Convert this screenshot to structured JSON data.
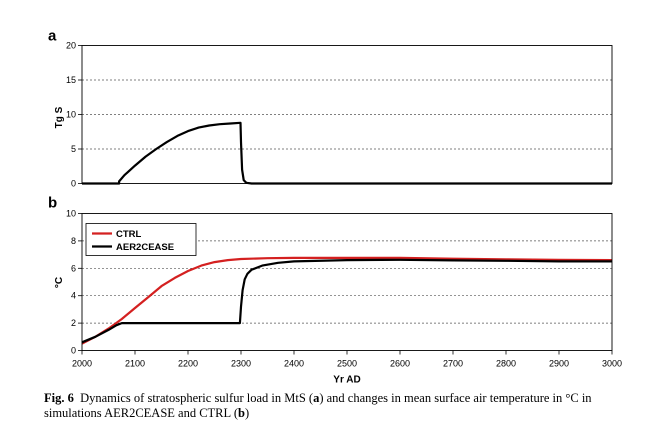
{
  "colors": {
    "ctrl": "#d42020",
    "aer2cease": "#000000",
    "grid": "#555555"
  },
  "caption": {
    "fig_label": "Fig. 6",
    "part1": "Dynamics of stratospheric sulfur load in MtS (",
    "ref_a": "a",
    "part2": ") and changes in mean surface air temperature in °C in simulations AER2CEASE and CTRL (",
    "ref_b": "b",
    "part3": ")"
  },
  "chart_data": [
    {
      "panel": "a",
      "type": "line",
      "title": "",
      "xlabel": "",
      "ylabel": "Tg S",
      "xlim": [
        2000,
        3000
      ],
      "ylim": [
        0,
        20
      ],
      "yticks": [
        "0",
        "5",
        "10",
        "15",
        "20"
      ],
      "grid": true,
      "series": [
        {
          "name": "AER2CEASE",
          "color": "#000000",
          "x": [
            2000,
            2070,
            2070,
            2080,
            2100,
            2120,
            2140,
            2160,
            2180,
            2200,
            2220,
            2240,
            2260,
            2280,
            2299,
            2300,
            2302,
            2305,
            2310,
            2320,
            3000
          ],
          "y": [
            0,
            0,
            0.3,
            1.2,
            2.6,
            3.9,
            5.0,
            6.0,
            6.9,
            7.6,
            8.1,
            8.4,
            8.6,
            8.7,
            8.8,
            6.0,
            2.0,
            0.5,
            0.1,
            0,
            0
          ]
        }
      ]
    },
    {
      "panel": "b",
      "type": "line",
      "title": "",
      "xlabel": "Yr AD",
      "ylabel": "°C",
      "xlim": [
        2000,
        3000
      ],
      "ylim": [
        0,
        10
      ],
      "xticks": [
        "2000",
        "2100",
        "2200",
        "2300",
        "2400",
        "2500",
        "2600",
        "2700",
        "2800",
        "2900",
        "3000"
      ],
      "yticks": [
        "0",
        "2",
        "4",
        "6",
        "8",
        "10"
      ],
      "grid": true,
      "legend": "top-left",
      "series": [
        {
          "name": "CTRL",
          "color": "#d42020",
          "x": [
            2000,
            2025,
            2050,
            2075,
            2100,
            2125,
            2150,
            2175,
            2200,
            2225,
            2250,
            2275,
            2300,
            2350,
            2400,
            2500,
            2600,
            2700,
            2800,
            2900,
            3000
          ],
          "y": [
            0.5,
            1.0,
            1.6,
            2.3,
            3.1,
            3.9,
            4.7,
            5.3,
            5.8,
            6.2,
            6.45,
            6.6,
            6.68,
            6.74,
            6.76,
            6.76,
            6.76,
            6.7,
            6.66,
            6.62,
            6.6
          ]
        },
        {
          "name": "AER2CEASE",
          "color": "#000000",
          "x": [
            2000,
            2025,
            2050,
            2065,
            2075,
            2100,
            2200,
            2298,
            2300,
            2303,
            2307,
            2312,
            2320,
            2340,
            2370,
            2400,
            2500,
            2600,
            2700,
            2800,
            2900,
            3000
          ],
          "y": [
            0.6,
            1.0,
            1.5,
            1.85,
            2.0,
            2.0,
            2.0,
            2.0,
            3.2,
            4.4,
            5.2,
            5.6,
            5.9,
            6.2,
            6.4,
            6.5,
            6.6,
            6.62,
            6.58,
            6.55,
            6.5,
            6.5
          ]
        }
      ]
    }
  ]
}
